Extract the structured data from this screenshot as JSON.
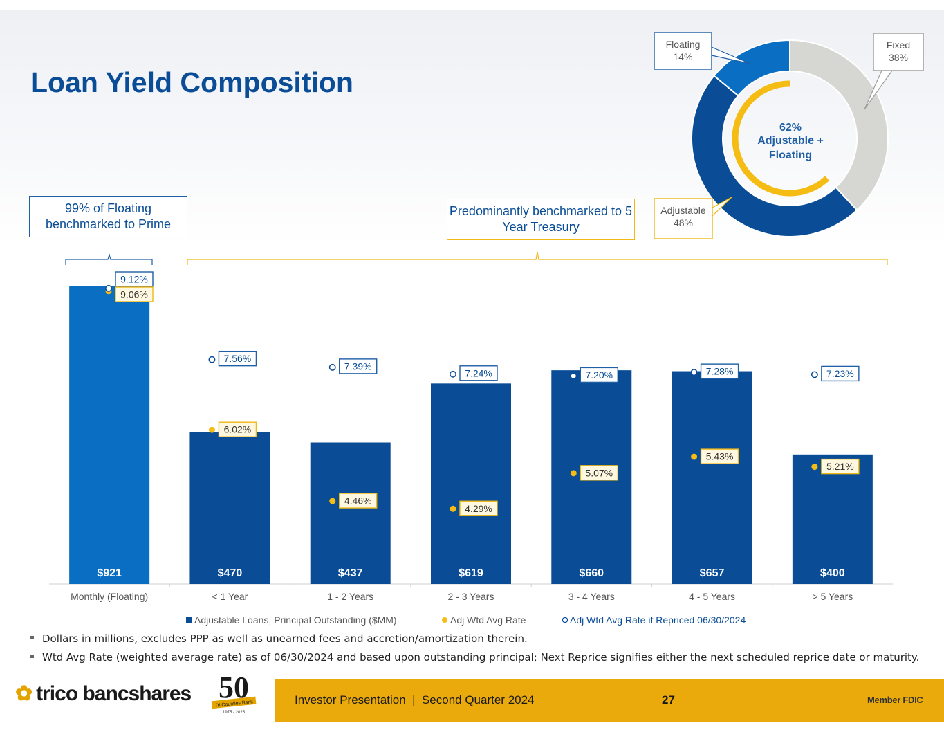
{
  "title": "Loan Yield Composition",
  "callouts": {
    "floating_prime": "99% of Floating benchmarked to Prime",
    "treasury": "Predominantly benchmarked to 5 Year Treasury"
  },
  "donut": {
    "center_label": [
      "62%",
      "Adjustable +",
      "Floating"
    ],
    "slices": [
      {
        "name": "Fixed",
        "pct_label": "38%",
        "value": 38,
        "color": "#d6d6d3"
      },
      {
        "name": "Adjustable",
        "pct_label": "48%",
        "value": 48,
        "color": "#0a4d96"
      },
      {
        "name": "Floating",
        "pct_label": "14%",
        "value": 14,
        "color": "#0a6fc2"
      }
    ],
    "ring_color": "#f5bc14"
  },
  "chart_data": {
    "type": "bar",
    "categories": [
      "Monthly (Floating)",
      "< 1 Year",
      "1 - 2 Years",
      "2 - 3 Years",
      "3 - 4 Years",
      "4 - 5 Years",
      "> 5 Years"
    ],
    "series": [
      {
        "name": "Adjustable Loans, Principal Outstanding ($MM)",
        "values": [
          921,
          470,
          437,
          619,
          660,
          657,
          400
        ],
        "value_labels": [
          "$921",
          "$470",
          "$437",
          "$619",
          "$660",
          "$657",
          "$400"
        ],
        "color": "#0a4d96"
      },
      {
        "name": "Adj Wtd Avg Rate",
        "values": [
          9.06,
          6.02,
          4.46,
          4.29,
          5.07,
          5.43,
          5.21
        ],
        "value_labels": [
          "9.06%",
          "6.02%",
          "4.46%",
          "4.29%",
          "5.07%",
          "5.43%",
          "5.21%"
        ],
        "color": "#f5bc14"
      },
      {
        "name": "Adj Wtd Avg Rate if Repriced 06/30/2024",
        "values": [
          9.12,
          7.56,
          7.39,
          7.24,
          7.2,
          7.28,
          7.23
        ],
        "value_labels": [
          "9.12%",
          "7.56%",
          "7.39%",
          "7.24%",
          "7.20%",
          "7.28%",
          "7.23%"
        ],
        "color": "#0a4d96"
      }
    ],
    "first_bar_color": "#0a6fc2",
    "bar_ylim": [
      0,
      1000
    ],
    "legend_position": "bottom"
  },
  "footnotes": [
    "Dollars in millions, excludes PPP as well as unearned fees and accretion/amortization therein.",
    "Wtd Avg Rate (weighted average rate) as of 06/30/2024 and based upon outstanding principal; Next Reprice signifies either the next scheduled reprice date or maturity."
  ],
  "footer": {
    "logo_text": "trico bancshares",
    "anniversary": "50",
    "anniversary_sub": "Tri Counties Bank",
    "anniversary_years": "1975 - 2025",
    "presentation": "Investor Presentation  |  Second Quarter 2024",
    "page": "27",
    "member": "Member FDIC"
  }
}
